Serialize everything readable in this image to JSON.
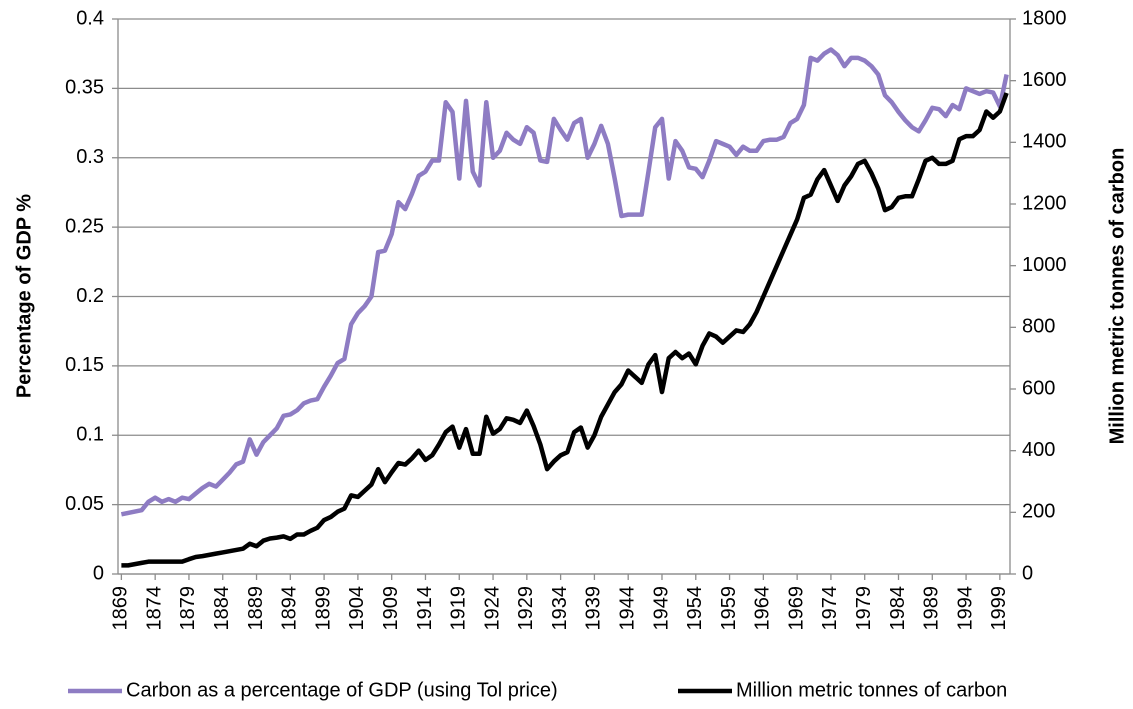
{
  "chart_data": {
    "type": "line",
    "x": [
      1869,
      1870,
      1871,
      1872,
      1873,
      1874,
      1875,
      1876,
      1877,
      1878,
      1879,
      1880,
      1881,
      1882,
      1883,
      1884,
      1885,
      1886,
      1887,
      1888,
      1889,
      1890,
      1891,
      1892,
      1893,
      1894,
      1895,
      1896,
      1897,
      1898,
      1899,
      1900,
      1901,
      1902,
      1903,
      1904,
      1905,
      1906,
      1907,
      1908,
      1909,
      1910,
      1911,
      1912,
      1913,
      1914,
      1915,
      1916,
      1917,
      1918,
      1919,
      1920,
      1921,
      1922,
      1923,
      1924,
      1925,
      1926,
      1927,
      1928,
      1929,
      1930,
      1931,
      1932,
      1933,
      1934,
      1935,
      1936,
      1937,
      1938,
      1939,
      1940,
      1941,
      1942,
      1943,
      1944,
      1945,
      1946,
      1947,
      1948,
      1949,
      1950,
      1951,
      1952,
      1953,
      1954,
      1955,
      1956,
      1957,
      1958,
      1959,
      1960,
      1961,
      1962,
      1963,
      1964,
      1965,
      1966,
      1967,
      1968,
      1969,
      1970,
      1971,
      1972,
      1973,
      1974,
      1975,
      1976,
      1977,
      1978,
      1979,
      1980,
      1981,
      1982,
      1983,
      1984,
      1985,
      1986,
      1987,
      1988,
      1989,
      1990,
      1991,
      1992,
      1993,
      1994,
      1995,
      1996,
      1997,
      1998,
      1999,
      2000
    ],
    "xlim": [
      1868.5,
      2000.5
    ],
    "xticks": [
      1869,
      1874,
      1879,
      1884,
      1889,
      1894,
      1899,
      1904,
      1909,
      1914,
      1919,
      1924,
      1929,
      1934,
      1939,
      1944,
      1949,
      1954,
      1959,
      1964,
      1969,
      1974,
      1979,
      1984,
      1989,
      1994,
      1999
    ],
    "ylim": [
      0,
      0.4
    ],
    "yticks": [
      0,
      0.05,
      0.1,
      0.15,
      0.2,
      0.25,
      0.3,
      0.35,
      0.4
    ],
    "y2lim": [
      0,
      1800
    ],
    "y2ticks": [
      0,
      200,
      400,
      600,
      800,
      1000,
      1200,
      1400,
      1600,
      1800
    ],
    "ylabel": "Percentage of GDP %",
    "y2label": "Million metric tonnes of carbon",
    "grid": true,
    "legend": "bottom",
    "series": [
      {
        "name": "Carbon as a percentage of GDP (using Tol price)",
        "color": "#8e7cc3",
        "values": [
          0.043,
          0.044,
          0.045,
          0.046,
          0.052,
          0.055,
          0.052,
          0.054,
          0.052,
          0.055,
          0.054,
          0.058,
          0.062,
          0.065,
          0.063,
          0.068,
          0.073,
          0.079,
          0.081,
          0.097,
          0.086,
          0.095,
          0.1,
          0.105,
          0.114,
          0.115,
          0.118,
          0.123,
          0.125,
          0.126,
          0.135,
          0.143,
          0.152,
          0.155,
          0.18,
          0.188,
          0.193,
          0.2,
          0.232,
          0.233,
          0.245,
          0.268,
          0.263,
          0.274,
          0.287,
          0.29,
          0.298,
          0.298,
          0.34,
          0.333,
          0.285,
          0.341,
          0.29,
          0.28,
          0.34,
          0.3,
          0.305,
          0.318,
          0.313,
          0.31,
          0.322,
          0.318,
          0.298,
          0.297,
          0.328,
          0.32,
          0.313,
          0.325,
          0.328,
          0.3,
          0.31,
          0.323,
          0.31,
          0.285,
          0.258,
          0.259,
          0.259,
          0.259,
          0.29,
          0.322,
          0.328,
          0.285,
          0.312,
          0.305,
          0.293,
          0.292,
          0.286,
          0.298,
          0.312,
          0.31,
          0.308,
          0.302,
          0.308,
          0.305,
          0.305,
          0.312,
          0.313,
          0.313,
          0.315,
          0.325,
          0.328,
          0.338,
          0.372,
          0.37,
          0.375,
          0.378,
          0.374,
          0.366,
          0.372,
          0.372,
          0.37,
          0.366,
          0.36,
          0.345,
          0.34,
          0.333,
          0.327,
          0.322,
          0.319,
          0.327,
          0.336,
          0.335,
          0.33,
          0.338,
          0.335,
          0.35,
          0.348,
          0.346,
          0.348,
          0.347,
          0.337,
          0.36
        ]
      },
      {
        "name": "Million metric tonnes of carbon",
        "color": "#000000",
        "axis": "y2",
        "values": [
          28,
          28,
          32,
          36,
          40,
          40,
          40,
          40,
          40,
          40,
          48,
          55,
          58,
          62,
          66,
          70,
          74,
          78,
          82,
          98,
          90,
          108,
          115,
          118,
          122,
          114,
          128,
          128,
          140,
          150,
          175,
          185,
          202,
          212,
          255,
          250,
          270,
          290,
          340,
          298,
          330,
          360,
          355,
          375,
          400,
          370,
          385,
          420,
          460,
          478,
          410,
          470,
          390,
          390,
          510,
          455,
          470,
          505,
          500,
          490,
          530,
          480,
          420,
          340,
          365,
          385,
          395,
          460,
          475,
          410,
          450,
          510,
          550,
          590,
          615,
          660,
          640,
          620,
          680,
          710,
          590,
          700,
          720,
          700,
          715,
          680,
          740,
          780,
          770,
          750,
          770,
          790,
          785,
          810,
          850,
          900,
          950,
          1000,
          1050,
          1100,
          1150,
          1220,
          1230,
          1280,
          1310,
          1260,
          1210,
          1260,
          1290,
          1330,
          1340,
          1300,
          1250,
          1180,
          1190,
          1220,
          1225,
          1225,
          1280,
          1340,
          1350,
          1330,
          1330,
          1340,
          1410,
          1420,
          1420,
          1440,
          1500,
          1480,
          1500,
          1560
        ]
      }
    ]
  }
}
